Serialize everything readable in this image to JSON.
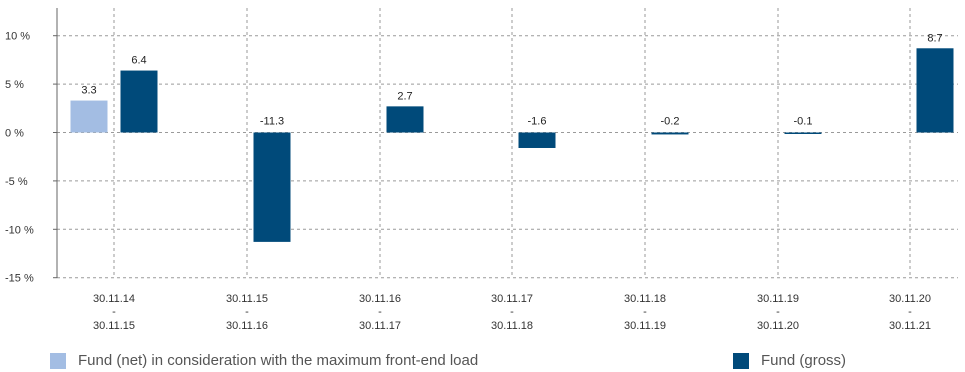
{
  "chart_data": {
    "type": "bar",
    "categories": [
      {
        "from": "30.11.14",
        "sep": "-",
        "to": "30.11.15"
      },
      {
        "from": "30.11.15",
        "sep": "-",
        "to": "30.11.16"
      },
      {
        "from": "30.11.16",
        "sep": "-",
        "to": "30.11.17"
      },
      {
        "from": "30.11.17",
        "sep": "-",
        "to": "30.11.18"
      },
      {
        "from": "30.11.18",
        "sep": "-",
        "to": "30.11.19"
      },
      {
        "from": "30.11.19",
        "sep": "-",
        "to": "30.11.20"
      },
      {
        "from": "30.11.20",
        "sep": "-",
        "to": "30.11.21"
      }
    ],
    "series": [
      {
        "name": "Fund (net) in consideration with the maximum front-end load",
        "color": "#a3bde3",
        "values": [
          3.3,
          null,
          null,
          null,
          null,
          null,
          null
        ],
        "labels": [
          "3.3",
          "",
          "",
          "",
          "",
          "",
          ""
        ]
      },
      {
        "name": "Fund (gross)",
        "color": "#004a7a",
        "values": [
          6.4,
          -11.3,
          2.7,
          -1.6,
          -0.2,
          -0.1,
          8.7
        ],
        "labels": [
          "6.4",
          "-11.3",
          "2.7",
          "-1.6",
          "-0.2",
          "-0.1",
          "8.7"
        ]
      }
    ],
    "yticks": [
      {
        "value": 10,
        "label": "10 %"
      },
      {
        "value": 5,
        "label": "5 %"
      },
      {
        "value": 0,
        "label": "0 %"
      },
      {
        "value": -5,
        "label": "-5 %"
      },
      {
        "value": -10,
        "label": "-10 %"
      },
      {
        "value": -15,
        "label": "-15 %"
      }
    ],
    "ylim": [
      -15,
      12.5
    ],
    "grid": true,
    "legend_position": "bottom"
  }
}
